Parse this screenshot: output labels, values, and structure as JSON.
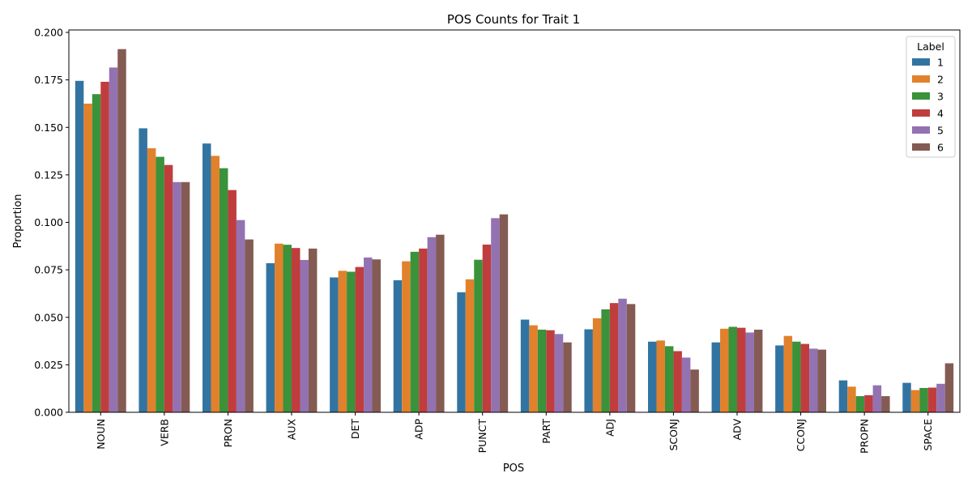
{
  "chart_data": {
    "type": "bar",
    "title": "POS Counts for Trait 1",
    "xlabel": "POS",
    "ylabel": "Proportion",
    "ylim": [
      0,
      0.2
    ],
    "yticks": [
      "0.000",
      "0.025",
      "0.050",
      "0.075",
      "0.100",
      "0.125",
      "0.150",
      "0.175",
      "0.200"
    ],
    "grid": false,
    "legend": {
      "title": "Label",
      "placement": "top-right"
    },
    "categories": [
      "NOUN",
      "VERB",
      "PRON",
      "AUX",
      "DET",
      "ADP",
      "PUNCT",
      "PART",
      "ADJ",
      "SCONJ",
      "ADV",
      "CCONJ",
      "PROPN",
      "SPACE"
    ],
    "series": [
      {
        "name": "1",
        "color": "#3274a1",
        "values": [
          0.1745,
          0.1495,
          0.1415,
          0.0785,
          0.071,
          0.0695,
          0.0632,
          0.0488,
          0.0437,
          0.0372,
          0.0368,
          0.0352,
          0.0168,
          0.0155
        ]
      },
      {
        "name": "2",
        "color": "#e1812c",
        "values": [
          0.1625,
          0.139,
          0.135,
          0.0888,
          0.0745,
          0.0795,
          0.07,
          0.0458,
          0.0495,
          0.0378,
          0.044,
          0.0402,
          0.0135,
          0.0117
        ]
      },
      {
        "name": "3",
        "color": "#3a923a",
        "values": [
          0.1675,
          0.1345,
          0.1285,
          0.0882,
          0.074,
          0.0845,
          0.0803,
          0.0435,
          0.0542,
          0.0348,
          0.045,
          0.0372,
          0.0085,
          0.0128
        ]
      },
      {
        "name": "4",
        "color": "#c03d3e",
        "values": [
          0.174,
          0.1302,
          0.117,
          0.0865,
          0.0765,
          0.0862,
          0.0883,
          0.0432,
          0.0575,
          0.0322,
          0.0445,
          0.036,
          0.009,
          0.013
        ]
      },
      {
        "name": "5",
        "color": "#9372b2",
        "values": [
          0.1815,
          0.1212,
          0.1012,
          0.0802,
          0.0815,
          0.0922,
          0.1022,
          0.0412,
          0.0598,
          0.0288,
          0.042,
          0.0335,
          0.0142,
          0.015
        ]
      },
      {
        "name": "6",
        "color": "#845b53",
        "values": [
          0.1912,
          0.1212,
          0.091,
          0.0862,
          0.0805,
          0.0935,
          0.1042,
          0.0368,
          0.057,
          0.0225,
          0.0435,
          0.033,
          0.0085,
          0.0258
        ]
      }
    ]
  }
}
